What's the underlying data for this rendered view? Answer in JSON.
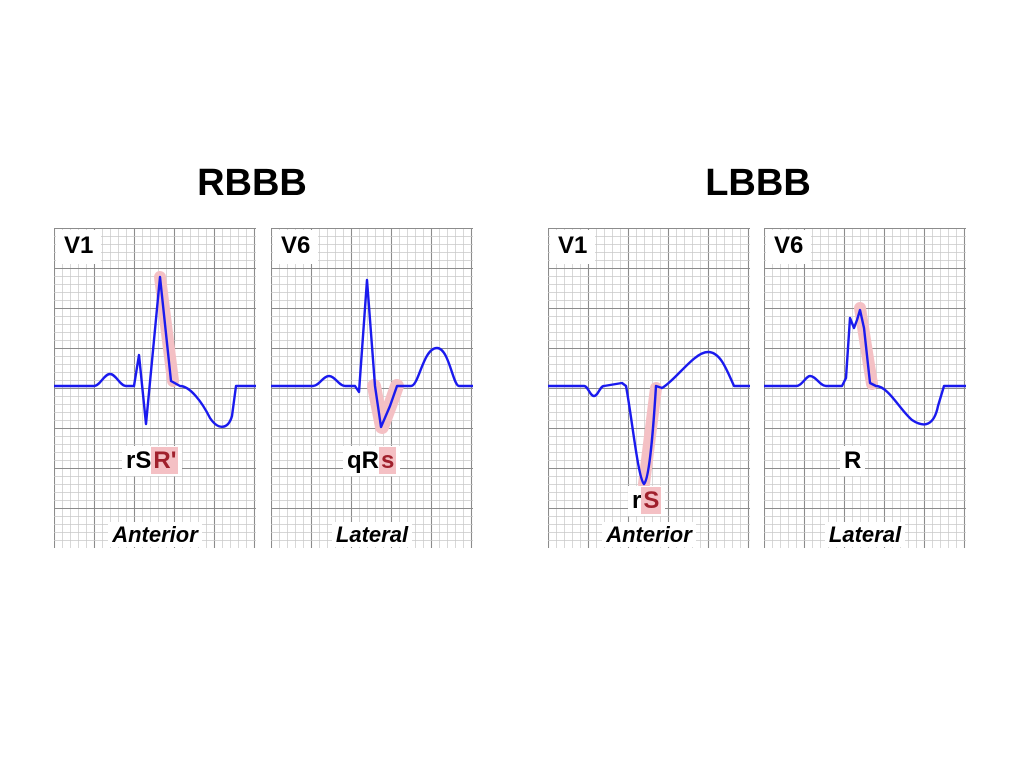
{
  "groups": [
    {
      "title": "RBBB"
    },
    {
      "title": "LBBB"
    }
  ],
  "panels": [
    {
      "lead": "V1",
      "complex_parts": [
        {
          "t": "rS",
          "hl": false
        },
        {
          "t": "R'",
          "hl": true
        }
      ],
      "wall": "Anterior"
    },
    {
      "lead": "V6",
      "complex_parts": [
        {
          "t": "qR",
          "hl": false
        },
        {
          "t": "s",
          "hl": true
        }
      ],
      "wall": "Lateral"
    },
    {
      "lead": "V1",
      "complex_parts": [
        {
          "t": "r",
          "hl": false
        },
        {
          "t": "S",
          "hl": true
        }
      ],
      "wall": "Anterior"
    },
    {
      "lead": "V6",
      "complex_parts": [
        {
          "t": "R",
          "hl": false
        }
      ],
      "wall": "Lateral"
    }
  ],
  "colors": {
    "trace": "#1a1aee",
    "highlight": "#f4c0c4",
    "highlight_text": "#a0202c",
    "grid_minor": "#c8c8c8",
    "grid_major": "#8c8c8c"
  }
}
